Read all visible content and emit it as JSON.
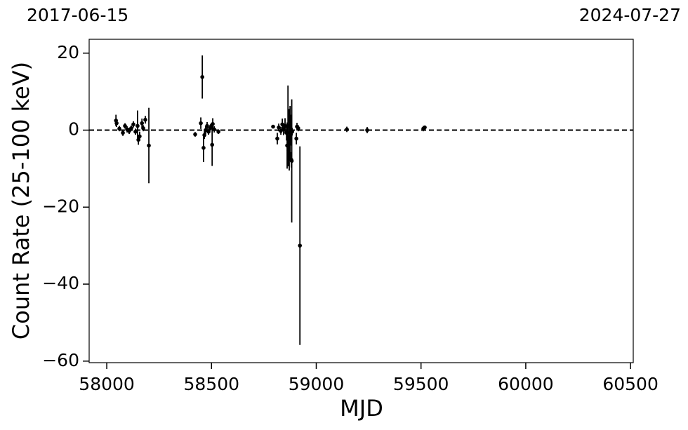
{
  "chart_data": {
    "type": "errorbar",
    "top_left_label": "2017-06-15",
    "top_right_label": "2024-07-27",
    "x_label": "MJD",
    "y_label": "Count Rate (25-100 keV)",
    "color": "#000000",
    "reference_line": 0,
    "xlim": [
      57916,
      60513
    ],
    "xticks": [
      58000,
      58500,
      59000,
      59500,
      60000,
      60500
    ],
    "ylim": [
      -60.4,
      23.6
    ],
    "yticks": [
      {
        "value": -60,
        "label": "−60"
      },
      {
        "value": -40,
        "label": "−40"
      },
      {
        "value": -20,
        "label": "−20"
      },
      0,
      20
    ],
    "x": [
      58044,
      58047,
      58060,
      58077,
      58087,
      58097,
      58107,
      58117,
      58127,
      58137,
      58147,
      58151,
      58157,
      58168,
      58174,
      58184,
      58201,
      58422,
      58449,
      58456,
      58462,
      58466,
      58472,
      58479,
      58486,
      58493,
      58499,
      58503,
      58506,
      58513,
      58533,
      58794,
      58814,
      58821,
      58831,
      58838,
      58844,
      58851,
      58858,
      58861,
      58865,
      58868,
      58871,
      58875,
      58878,
      58881,
      58883,
      58885,
      58905,
      58908,
      58914,
      58922,
      59146,
      59243,
      59511,
      59518
    ],
    "values": [
      2.5,
      1.8,
      0.4,
      -0.7,
      1.1,
      0.2,
      -0.2,
      0.5,
      1.5,
      -0.4,
      1.1,
      -2.5,
      -1.6,
      1.8,
      0.5,
      2.7,
      -4,
      -1.1,
      1.8,
      13.8,
      -4.6,
      -1.3,
      0,
      1.1,
      -0.4,
      0.5,
      1.1,
      -3.8,
      1.6,
      0.2,
      -0.4,
      0.9,
      -2.2,
      0.7,
      -0.2,
      1.5,
      0.2,
      1.1,
      -0.7,
      -4,
      1.1,
      -5.3,
      -2.5,
      -0.7,
      0,
      -7.7,
      -8,
      -0.4,
      -2.2,
      0.9,
      0.5,
      -30,
      0.2,
      0,
      0.4,
      0.7
    ],
    "errors": [
      1.5,
      1,
      0.7,
      0.8,
      0.7,
      0.8,
      0.8,
      0.7,
      0.8,
      0.8,
      4,
      1.3,
      1.2,
      1.2,
      0.8,
      1,
      9.8,
      0.6,
      1.5,
      5.6,
      3.7,
      1,
      1,
      1,
      0.8,
      0.7,
      0.8,
      5.5,
      1.5,
      0.8,
      0.6,
      0.4,
      1.5,
      1,
      1,
      1.5,
      1.5,
      2,
      2,
      6,
      10.5,
      4,
      8,
      7,
      4,
      2,
      16,
      1,
      1.5,
      1,
      0.8,
      25.8,
      0.7,
      0.8,
      0.7,
      0.5
    ]
  }
}
